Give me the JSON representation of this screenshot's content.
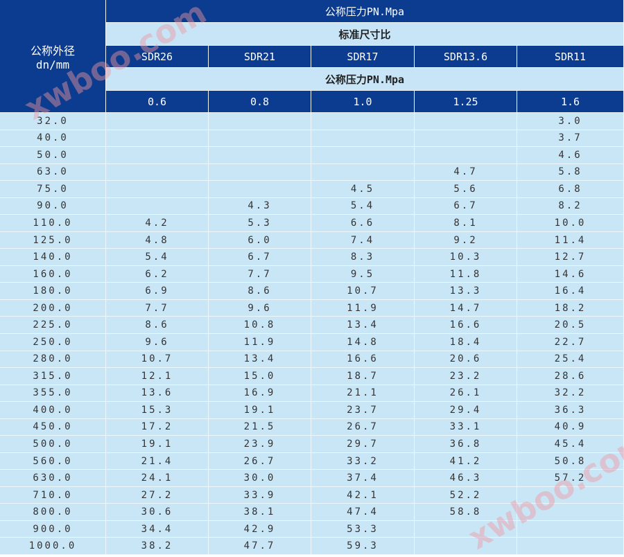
{
  "header": {
    "corner": "公称外径\ndn/mm",
    "pressure_title": "公称压力PN.Mpa",
    "sdr_title": "标准尺寸比",
    "sdr": [
      "SDR26",
      "SDR21",
      "SDR17",
      "SDR13.6",
      "SDR11"
    ],
    "pressure_title_2": "公称压力PN.Mpa",
    "pressures": [
      "0.6",
      "0.8",
      "1.0",
      "1.25",
      "1.6"
    ]
  },
  "table": {
    "rows": [
      [
        "32.0",
        null,
        null,
        null,
        null,
        "3.0"
      ],
      [
        "40.0",
        null,
        null,
        null,
        null,
        "3.7"
      ],
      [
        "50.0",
        null,
        null,
        null,
        null,
        "4.6"
      ],
      [
        "63.0",
        null,
        null,
        null,
        "4.7",
        "5.8"
      ],
      [
        "75.0",
        null,
        null,
        "4.5",
        "5.6",
        "6.8"
      ],
      [
        "90.0",
        null,
        "4.3",
        "5.4",
        "6.7",
        "8.2"
      ],
      [
        "110.0",
        "4.2",
        "5.3",
        "6.6",
        "8.1",
        "10.0"
      ],
      [
        "125.0",
        "4.8",
        "6.0",
        "7.4",
        "9.2",
        "11.4"
      ],
      [
        "140.0",
        "5.4",
        "6.7",
        "8.3",
        "10.3",
        "12.7"
      ],
      [
        "160.0",
        "6.2",
        "7.7",
        "9.5",
        "11.8",
        "14.6"
      ],
      [
        "180.0",
        "6.9",
        "8.6",
        "10.7",
        "13.3",
        "16.4"
      ],
      [
        "200.0",
        "7.7",
        "9.6",
        "11.9",
        "14.7",
        "18.2"
      ],
      [
        "225.0",
        "8.6",
        "10.8",
        "13.4",
        "16.6",
        "20.5"
      ],
      [
        "250.0",
        "9.6",
        "11.9",
        "14.8",
        "18.4",
        "22.7"
      ],
      [
        "280.0",
        "10.7",
        "13.4",
        "16.6",
        "20.6",
        "25.4"
      ],
      [
        "315.0",
        "12.1",
        "15.0",
        "18.7",
        "23.2",
        "28.6"
      ],
      [
        "355.0",
        "13.6",
        "16.9",
        "21.1",
        "26.1",
        "32.2"
      ],
      [
        "400.0",
        "15.3",
        "19.1",
        "23.7",
        "29.4",
        "36.3"
      ],
      [
        "450.0",
        "17.2",
        "21.5",
        "26.7",
        "33.1",
        "40.9"
      ],
      [
        "500.0",
        "19.1",
        "23.9",
        "29.7",
        "36.8",
        "45.4"
      ],
      [
        "560.0",
        "21.4",
        "26.7",
        "33.2",
        "41.2",
        "50.8"
      ],
      [
        "630.0",
        "24.1",
        "30.0",
        "37.4",
        "46.3",
        "57.2"
      ],
      [
        "710.0",
        "27.2",
        "33.9",
        "42.1",
        "52.2",
        null
      ],
      [
        "800.0",
        "30.6",
        "38.1",
        "47.4",
        "58.8",
        null
      ],
      [
        "900.0",
        "34.4",
        "42.9",
        "53.3",
        null,
        null
      ],
      [
        "1000.0",
        "38.2",
        "47.7",
        "59.3",
        null,
        null
      ]
    ]
  },
  "watermark": "xwboo.com"
}
